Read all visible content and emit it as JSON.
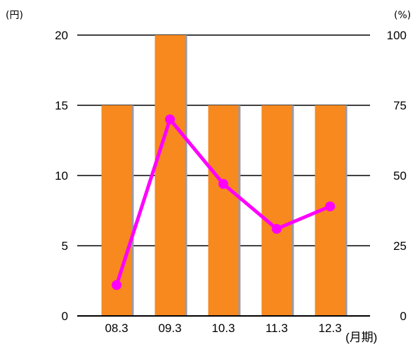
{
  "chart_data": {
    "type": "bar",
    "categories": [
      "08.3",
      "09.3",
      "10.3",
      "11.3",
      "12.3"
    ],
    "series": [
      {
        "type": "bar",
        "axis": "left",
        "values": [
          15,
          20,
          15,
          15,
          15
        ],
        "color": "#f7891e"
      },
      {
        "type": "line",
        "axis": "right",
        "values": [
          11,
          70,
          47,
          31,
          39
        ],
        "color": "#ff00ff"
      }
    ],
    "left_axis": {
      "unit": "(円)",
      "ticks": [
        "0",
        "5",
        "10",
        "15",
        "20"
      ],
      "range": [
        0,
        20
      ]
    },
    "right_axis": {
      "unit": "(%)",
      "ticks": [
        "0",
        "25",
        "50",
        "75",
        "100"
      ],
      "range": [
        0,
        100
      ]
    },
    "x_unit": "(月期)",
    "grid": true
  }
}
